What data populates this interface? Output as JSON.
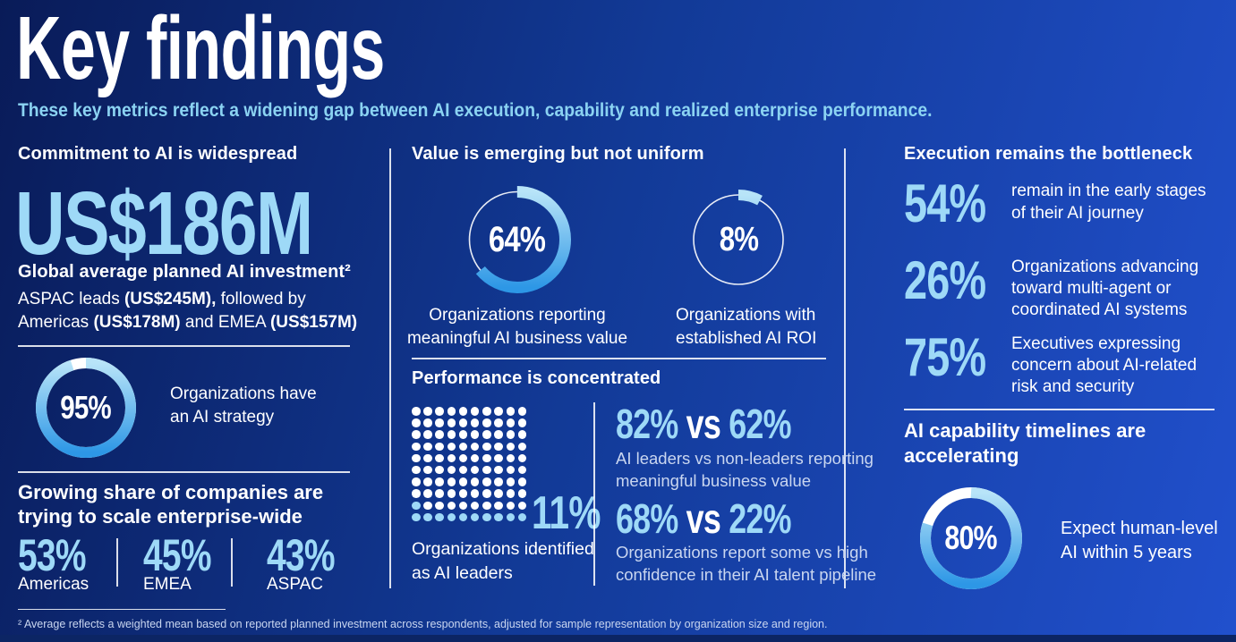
{
  "page": {
    "title": "Key findings",
    "subtitle": "These key metrics reflect a widening gap between AI execution, capability and realized enterprise performance.",
    "footnote": "² Average reflects a weighted mean based on reported planned investment across respondents, adjusted for sample representation by organization size and region."
  },
  "colors": {
    "bg1": "#091b58",
    "bg2": "#123a97",
    "bg3": "#2150cd",
    "strip": "#0c2564",
    "accent": "#9ed9f7",
    "subtitle": "#8bd3f2",
    "sublabel": "#c9d6f0",
    "arc_start": "#b8e4f8",
    "arc_end": "#2d97e6"
  },
  "col1": {
    "heading": "Commitment to AI is widespread",
    "investment": "US$186M",
    "investment_label": "Global average planned AI investment²",
    "detail_parts": [
      "ASPAC leads ",
      "(US$245M),",
      " followed by\nAmericas ",
      "(US$178M)",
      " and EMEA ",
      "(US$157M)"
    ],
    "scale_heading": "Growing share of companies are\ntrying to scale enterprise-wide",
    "regions": [
      {
        "value": "53%",
        "label": "Americas"
      },
      {
        "value": "45%",
        "label": "EMEA"
      },
      {
        "value": "43%",
        "label": "ASPAC"
      }
    ]
  },
  "col2": {
    "heading": "Value is emerging but not uniform",
    "perf_heading": "Performance is concentrated",
    "compare": [
      {
        "a": "82%",
        "vs": "vs",
        "b": "62%",
        "label": "AI leaders vs non-leaders reporting\nmeaningful business value"
      },
      {
        "a": "68%",
        "vs": "vs",
        "b": "22%",
        "label": "Organizations report some vs high\nconfidence in their AI talent pipeline"
      }
    ]
  },
  "col3": {
    "heading": "Execution remains the bottleneck",
    "stats": [
      {
        "value": "54%",
        "label": "remain in the early stages\nof their AI journey"
      },
      {
        "value": "26%",
        "label": "Organizations advancing\ntoward multi-agent or\ncoordinated AI systems"
      },
      {
        "value": "75%",
        "label": "Executives expressing\nconcern about AI-related\nrisk and security"
      }
    ],
    "timeline_heading": "AI capability timelines are\naccelerating"
  },
  "chart_data": [
    {
      "type": "donut",
      "id": "ai-strategy",
      "value": 95,
      "display": "95%",
      "track": "thick",
      "label": "Organizations have\nan AI strategy"
    },
    {
      "type": "donut",
      "id": "business-value",
      "value": 64,
      "display": "64%",
      "track": "thin",
      "label": "Organizations reporting\nmeaningful AI business value"
    },
    {
      "type": "donut",
      "id": "ai-roi",
      "value": 8,
      "display": "8%",
      "track": "thin",
      "label": "Organizations with\nestablished AI ROI"
    },
    {
      "type": "dot-matrix",
      "id": "ai-leaders",
      "rows": 10,
      "cols": 10,
      "highlighted": 11,
      "value": 11,
      "display": "11%",
      "label": "Organizations identified\nas AI leaders"
    },
    {
      "type": "donut",
      "id": "human-level-ai",
      "value": 80,
      "display": "80%",
      "track": "thick",
      "label": "Expect human-level\nAI within 5 years"
    }
  ]
}
